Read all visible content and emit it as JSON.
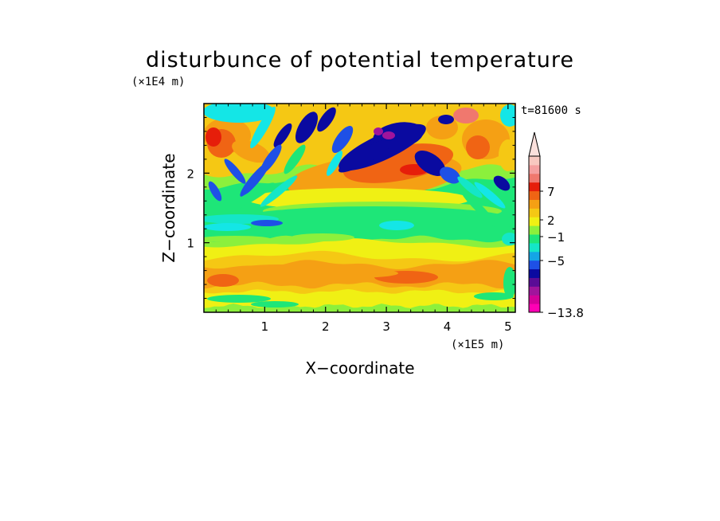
{
  "chart_data": {
    "type": "heatmap",
    "title": "disturbunce of potential temperature",
    "xlabel": "X−coordinate",
    "ylabel": "Z−coordinate",
    "x_unit": "(×1E5 m)",
    "y_unit": "(×1E4 m)",
    "time_label": "t=81600 s",
    "xlim": [
      0,
      5.12
    ],
    "ylim": [
      0,
      3
    ],
    "x_ticks": [
      1,
      2,
      3,
      4,
      5
    ],
    "y_ticks": [
      1,
      2
    ],
    "grid": false,
    "legend": "right",
    "colorbar": {
      "labels": [
        "7",
        "2",
        "−1",
        "−5",
        "−13.8"
      ],
      "label_values": [
        7,
        2,
        -1,
        -5,
        -13.8
      ],
      "min_value": -13.8,
      "colors": [
        "#ff00b4",
        "#d4009a",
        "#a0149c",
        "#5a0c96",
        "#0a0aa0",
        "#1e50e6",
        "#14a5e6",
        "#14e6c8",
        "#1ee678",
        "#8cf03c",
        "#f0f014",
        "#f5c814",
        "#f5a014",
        "#f06414",
        "#e61e0a",
        "#f0786e",
        "#f5a0a0",
        "#f8c8c0"
      ],
      "extend": "max"
    }
  }
}
